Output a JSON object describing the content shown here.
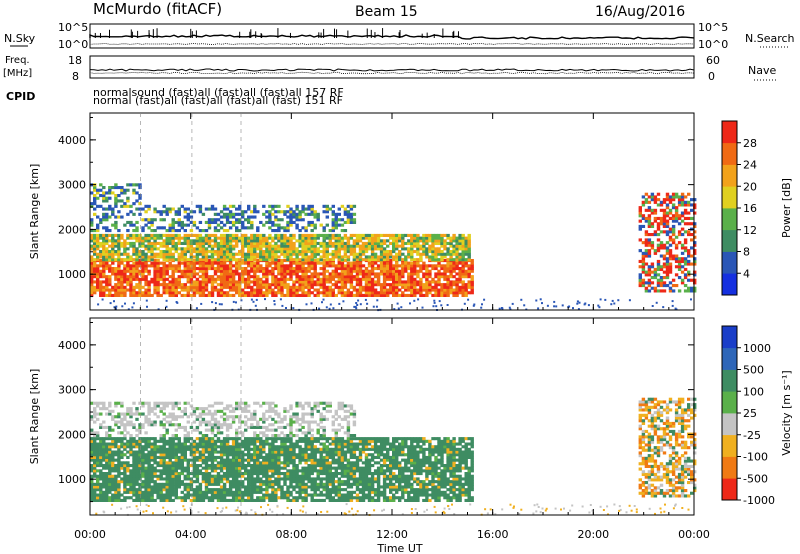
{
  "header": {
    "station": "McMurdo (fitACF)",
    "beam": "Beam 15",
    "date": "16/Aug/2016"
  },
  "top_strips": {
    "left_labels": [
      "N.Sky",
      "Freq.",
      "[MHz]",
      "CPID"
    ],
    "right_labels": [
      "N.Search",
      "Nave"
    ],
    "sky_ticks": [
      "10^5",
      "10^0"
    ],
    "freq_ticks": [
      "18",
      "8"
    ],
    "nave_ticks": [
      "60",
      "0"
    ],
    "cpid_text": [
      "normal",
      "sound",
      "(fast)",
      "all (fast)",
      "157",
      "151",
      "RF"
    ],
    "cpid_line1": "normalsound (fast)all (fast)all (fast)all 157 RF",
    "cpid_line2": "normal (fast)all (fast)all (fast)all (fast) 151 RF"
  },
  "chart_data": [
    {
      "type": "heatmap",
      "title": "",
      "xlabel": "Time UT",
      "ylabel": "Slant Range [km]",
      "x_ticks": [
        "00:00",
        "04:00",
        "08:00",
        "12:00",
        "16:00",
        "20:00",
        "00:00"
      ],
      "y_ticks": [
        1000,
        2000,
        3000,
        4000
      ],
      "xlim": [
        0,
        24
      ],
      "ylim": [
        200,
        4600
      ],
      "colorbar": {
        "label": "Power [dB]",
        "ticks": [
          4,
          8,
          12,
          16,
          20,
          24,
          28
        ],
        "colors": [
          "#1530e0",
          "#2a56b6",
          "#3e8c62",
          "#5ab04a",
          "#e0d020",
          "#f2a21b",
          "#f06a14",
          "#ee2818"
        ]
      },
      "regions": [
        {
          "t0": 0.0,
          "t1": 15.2,
          "r0": 500,
          "r1": 1300,
          "level": "high"
        },
        {
          "t0": 0.0,
          "t1": 15.0,
          "r0": 1300,
          "r1": 1900,
          "level": "mid"
        },
        {
          "t0": 0.0,
          "t1": 10.5,
          "r0": 1950,
          "r1": 2550,
          "level": "low"
        },
        {
          "t0": 0.0,
          "t1": 2.0,
          "r0": 2550,
          "r1": 3000,
          "level": "low"
        },
        {
          "t0": 21.8,
          "t1": 24.0,
          "r0": 600,
          "r1": 2800,
          "level": "mixed"
        }
      ]
    },
    {
      "type": "heatmap",
      "title": "",
      "xlabel": "Time UT",
      "ylabel": "Slant Range [km]",
      "x_ticks": [
        "00:00",
        "04:00",
        "08:00",
        "12:00",
        "16:00",
        "20:00",
        "00:00"
      ],
      "y_ticks": [
        1000,
        2000,
        3000,
        4000
      ],
      "xlim": [
        0,
        24
      ],
      "ylim": [
        200,
        4600
      ],
      "colorbar": {
        "label": "Velocity [m s⁻¹]",
        "ticks": [
          1000,
          500,
          100,
          25,
          -25,
          -100,
          -500,
          -1000
        ],
        "colors": [
          "#1a3ec8",
          "#2e66b8",
          "#3e8c62",
          "#5ab04a",
          "#c4c4c4",
          "#f0b020",
          "#f07a14",
          "#ee2818"
        ]
      },
      "regions": [
        {
          "t0": 0.0,
          "t1": 15.2,
          "r0": 500,
          "r1": 1900,
          "level": "green"
        },
        {
          "t0": 0.0,
          "t1": 10.5,
          "r0": 1950,
          "r1": 2700,
          "level": "grey"
        },
        {
          "t0": 21.8,
          "t1": 24.0,
          "r0": 600,
          "r1": 2800,
          "level": "mixed"
        }
      ]
    }
  ]
}
